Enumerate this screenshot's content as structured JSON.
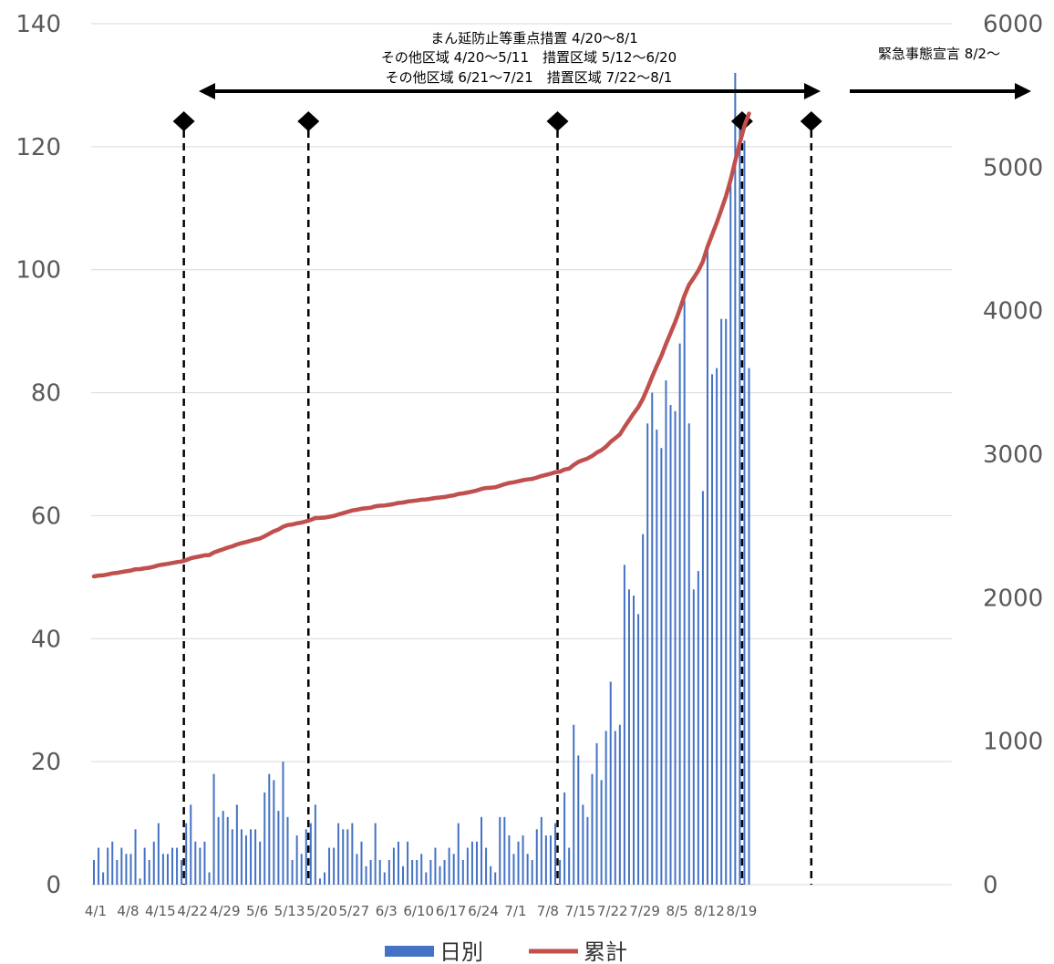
{
  "chart_data": {
    "type": "bar",
    "title": "",
    "xlabel": "",
    "ylabel": "",
    "ylim": [
      0,
      140
    ],
    "y2lim": [
      0,
      6000
    ],
    "yticks": [
      "0",
      "20",
      "40",
      "60",
      "80",
      "100",
      "120",
      "140"
    ],
    "y2ticks": [
      "0",
      "1000",
      "2000",
      "3000",
      "4000",
      "5000",
      "6000"
    ],
    "xticks": [
      "4/1",
      "4/8",
      "4/15",
      "4/22",
      "4/29",
      "5/6",
      "5/13",
      "5/20",
      "5/27",
      "6/3",
      "6/10",
      "6/17",
      "6/24",
      "7/1",
      "7/8",
      "7/15",
      "7/22",
      "7/29",
      "8/5",
      "8/12",
      "8/19"
    ],
    "grid": true,
    "legend_position": "bottom",
    "colors": {
      "bar": "#4472C4",
      "line": "#C0504D",
      "grid": "#D9D9D9"
    },
    "series": [
      {
        "name": "日別",
        "type": "bar",
        "axis": "left",
        "values": [
          4,
          6,
          2,
          6,
          7,
          4,
          6,
          5,
          5,
          9,
          1,
          6,
          4,
          7,
          10,
          5,
          5,
          6,
          6,
          4,
          10,
          13,
          7,
          6,
          7,
          2,
          18,
          11,
          12,
          11,
          9,
          13,
          9,
          8,
          9,
          9,
          7,
          15,
          18,
          17,
          12,
          20,
          11,
          4,
          8,
          5,
          9,
          10,
          13,
          1,
          2,
          6,
          6,
          10,
          9,
          9,
          10,
          5,
          7,
          3,
          4,
          10,
          4,
          2,
          4,
          6,
          7,
          3,
          7,
          4,
          4,
          5,
          2,
          4,
          6,
          3,
          4,
          6,
          5,
          10,
          4,
          6,
          7,
          7,
          11,
          6,
          3,
          2,
          11,
          11,
          8,
          5,
          7,
          8,
          5,
          4,
          9,
          11,
          8,
          8,
          10,
          4,
          15,
          6,
          26,
          21,
          13,
          11,
          18,
          23,
          17,
          25,
          33,
          25,
          26,
          52,
          48,
          47,
          44,
          57,
          75,
          80,
          74,
          71,
          82,
          78,
          77,
          88,
          95,
          75,
          48,
          51,
          64,
          103,
          83,
          84,
          92,
          92,
          114,
          132,
          125,
          121,
          84
        ]
      },
      {
        "name": "累計",
        "type": "line",
        "axis": "right",
        "values": [
          2148,
          2154,
          2156,
          2162,
          2169,
          2173,
          2179,
          2184,
          2189,
          2198,
          2199,
          2205,
          2209,
          2216,
          2226,
          2231,
          2236,
          2242,
          2248,
          2252,
          2262,
          2275,
          2282,
          2288,
          2295,
          2297,
          2315,
          2326,
          2338,
          2349,
          2358,
          2371,
          2380,
          2388,
          2397,
          2406,
          2413,
          2428,
          2446,
          2463,
          2475,
          2495,
          2506,
          2510,
          2518,
          2523,
          2532,
          2542,
          2555,
          2556,
          2558,
          2564,
          2570,
          2580,
          2589,
          2598,
          2608,
          2613,
          2620,
          2623,
          2627,
          2637,
          2641,
          2643,
          2647,
          2653,
          2660,
          2663,
          2670,
          2674,
          2678,
          2683,
          2685,
          2689,
          2695,
          2698,
          2702,
          2708,
          2713,
          2723,
          2727,
          2733,
          2740,
          2747,
          2758,
          2764,
          2767,
          2769,
          2780,
          2791,
          2799,
          2804,
          2811,
          2819,
          2824,
          2828,
          2837,
          2848,
          2856,
          2864,
          2874,
          2878,
          2893,
          2899,
          2925,
          2946,
          2959,
          2970,
          2988,
          3011,
          3028,
          3053,
          3086,
          3111,
          3137,
          3189,
          3237,
          3284,
          3328,
          3385,
          3460,
          3540,
          3614,
          3685,
          3767,
          3845,
          3922,
          4010,
          4105,
          4180,
          4228,
          4279,
          4343,
          4446,
          4529,
          4613,
          4705,
          4797,
          4911,
          5043,
          5168,
          5289,
          5373
        ]
      }
    ],
    "annotations": {
      "line1": "まん延防止等重点措置 4/20～8/1",
      "line2": "その他区域 4/20～5/11　措置区域 5/12～6/20",
      "line3": "その他区域 6/21～7/21　措置区域 7/22～8/1",
      "right_label": "緊急事態宣言 8/2～"
    }
  }
}
